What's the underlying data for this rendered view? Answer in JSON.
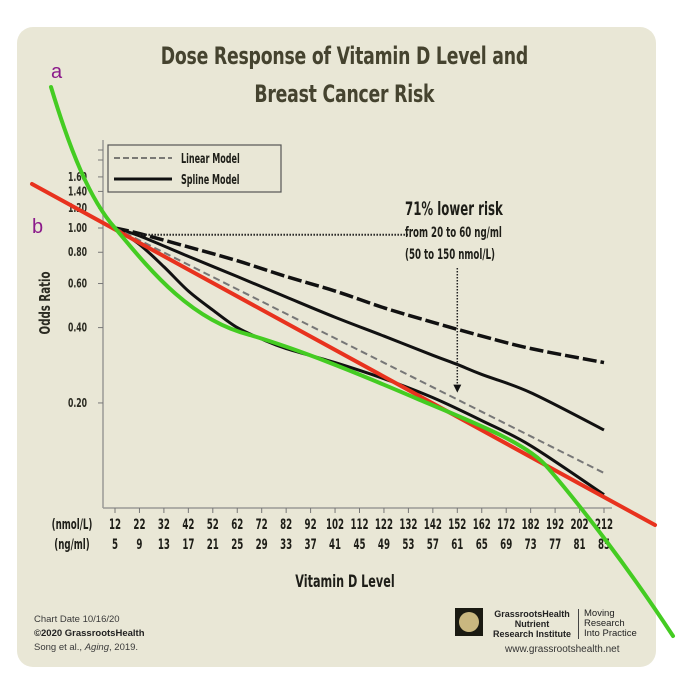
{
  "chart_data": {
    "type": "line",
    "title": "Dose Response of Vitamin D Level and Breast Cancer Risk",
    "title_lines": [
      "Dose Response of Vitamin D Level and",
      "Breast Cancer Risk"
    ],
    "xlabel": "Vitamin D Level",
    "ylabel": "Odds Ratio",
    "yscale": "log",
    "ylim": [
      0.12,
      1.7
    ],
    "yticks": [
      0.2,
      0.4,
      0.6,
      0.8,
      1.0,
      1.2,
      1.4,
      1.6
    ],
    "ytick_labels": [
      "0.20",
      "0.40",
      "0.60",
      "0.80",
      "1.00",
      "1.20",
      "1.40",
      "1.60"
    ],
    "x_unit_labels": [
      "(nmol/L)",
      "(ng/ml)"
    ],
    "x_nmol": [
      12,
      22,
      32,
      42,
      52,
      62,
      72,
      82,
      92,
      102,
      112,
      122,
      132,
      142,
      152,
      162,
      172,
      182,
      192,
      202,
      212
    ],
    "x_ngml": [
      5,
      9,
      13,
      17,
      21,
      25,
      29,
      33,
      37,
      41,
      45,
      49,
      53,
      57,
      61,
      65,
      69,
      73,
      77,
      81,
      85
    ],
    "legend": {
      "placement": "top-left",
      "entries": [
        {
          "label": "Linear Model",
          "style": "dashed"
        },
        {
          "label": "Spline Model",
          "style": "solid"
        }
      ]
    },
    "series": [
      {
        "name": "Spline Model",
        "style": "solid",
        "color": "#111111",
        "x": [
          12,
          22,
          42,
          62,
          82,
          102,
          122,
          142,
          152,
          162,
          182,
          212
        ],
        "y": [
          1.0,
          0.93,
          0.77,
          0.64,
          0.53,
          0.44,
          0.37,
          0.31,
          0.285,
          0.26,
          0.22,
          0.156
        ]
      },
      {
        "name": "Spline Model upper CI",
        "style": "dashed-heavy",
        "color": "#111111",
        "x": [
          12,
          22,
          42,
          62,
          82,
          102,
          122,
          142,
          162,
          182,
          212
        ],
        "y": [
          1.0,
          0.95,
          0.84,
          0.74,
          0.64,
          0.56,
          0.48,
          0.42,
          0.37,
          0.33,
          0.29
        ]
      },
      {
        "name": "Spline Model lower CI",
        "style": "solid",
        "color": "#111111",
        "x": [
          12,
          22,
          32,
          42,
          52,
          62,
          72,
          82,
          102,
          122,
          142,
          162,
          182,
          212
        ],
        "y": [
          1.0,
          0.86,
          0.7,
          0.56,
          0.47,
          0.4,
          0.36,
          0.33,
          0.29,
          0.25,
          0.21,
          0.17,
          0.135,
          0.086
        ]
      },
      {
        "name": "Linear Model",
        "style": "dashed",
        "color": "#777777",
        "x": [
          12,
          212
        ],
        "y": [
          1.0,
          0.105
        ]
      },
      {
        "name": "Reference 1.00",
        "style": "dotted",
        "color": "#222222",
        "x": [
          22,
          132
        ],
        "y": [
          0.94,
          0.94
        ]
      }
    ],
    "annotations": [
      {
        "text": "71% lower risk",
        "bold": true
      },
      {
        "text": "from 20 to 60 ng/ml"
      },
      {
        "text": "(50 to 150 nmol/L)"
      },
      {
        "type": "arrow",
        "x": 152,
        "from_y": 0.94,
        "to_y": 0.22
      }
    ],
    "overlay": {
      "labels": [
        {
          "text": "a",
          "color": "#8b1a8b"
        },
        {
          "text": "b",
          "color": "#8b1a8b"
        }
      ],
      "lines": [
        {
          "name": "a",
          "color": "#44cc22",
          "shape": "curve"
        },
        {
          "name": "b",
          "color": "#e8321e",
          "shape": "straight"
        }
      ]
    }
  },
  "footer": {
    "chart_date": "Chart Date 10/16/20",
    "copyright": "©2020 GrassrootsHealth",
    "citation_pre": "Song et al., ",
    "citation_journal": "Aging",
    "citation_post": ", 2019.",
    "org_line1": "GrassrootsHealth",
    "org_line2": "Nutrient",
    "org_line3": "Research Institute",
    "tagline1": "Moving",
    "tagline2": "Research",
    "tagline3": "Into Practice",
    "url": "www.grassrootshealth.net"
  }
}
